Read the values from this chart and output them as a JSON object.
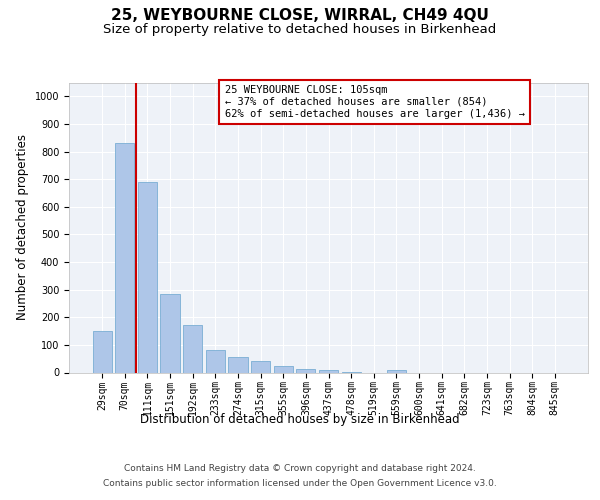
{
  "title": "25, WEYBOURNE CLOSE, WIRRAL, CH49 4QU",
  "subtitle": "Size of property relative to detached houses in Birkenhead",
  "xlabel": "Distribution of detached houses by size in Birkenhead",
  "ylabel": "Number of detached properties",
  "bar_color": "#aec6e8",
  "bar_edge_color": "#7aaed4",
  "background_color": "#eef2f8",
  "grid_color": "#ffffff",
  "categories": [
    "29sqm",
    "70sqm",
    "111sqm",
    "151sqm",
    "192sqm",
    "233sqm",
    "274sqm",
    "315sqm",
    "355sqm",
    "396sqm",
    "437sqm",
    "478sqm",
    "519sqm",
    "559sqm",
    "600sqm",
    "641sqm",
    "682sqm",
    "723sqm",
    "763sqm",
    "804sqm",
    "845sqm"
  ],
  "values": [
    150,
    830,
    690,
    285,
    172,
    80,
    55,
    42,
    23,
    12,
    8,
    1,
    0,
    10,
    0,
    0,
    0,
    0,
    0,
    0,
    0
  ],
  "ylim": [
    0,
    1050
  ],
  "yticks": [
    0,
    100,
    200,
    300,
    400,
    500,
    600,
    700,
    800,
    900,
    1000
  ],
  "annotation_title": "25 WEYBOURNE CLOSE: 105sqm",
  "annotation_line1": "← 37% of detached houses are smaller (854)",
  "annotation_line2": "62% of semi-detached houses are larger (1,436) →",
  "annotation_box_color": "#ffffff",
  "annotation_box_edge_color": "#cc0000",
  "line_color": "#cc0000",
  "footer_line1": "Contains HM Land Registry data © Crown copyright and database right 2024.",
  "footer_line2": "Contains public sector information licensed under the Open Government Licence v3.0.",
  "title_fontsize": 11,
  "subtitle_fontsize": 9.5,
  "axis_label_fontsize": 8.5,
  "tick_fontsize": 7,
  "annotation_fontsize": 7.5,
  "footer_fontsize": 6.5
}
